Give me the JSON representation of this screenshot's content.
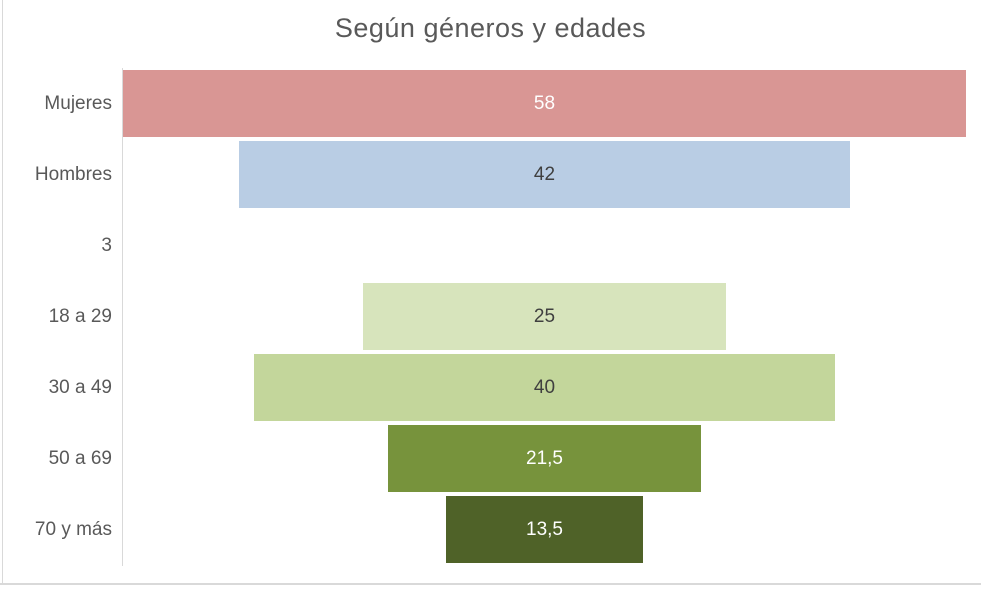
{
  "title": "Según géneros y edades",
  "colors": {
    "title_text": "#595959",
    "category_text": "#595959",
    "axis_line": "#d9d9d9",
    "chart_border": "#d9d9d9",
    "background": "#ffffff"
  },
  "chart_data": {
    "type": "bar",
    "subtype": "horizontal-centered-funnel",
    "title": "Según géneros y edades",
    "categories": [
      "Mujeres",
      "Hombres",
      "3",
      "18 a 29",
      "30 a 49",
      "50 a 69",
      "70 y más"
    ],
    "values": [
      58,
      42,
      null,
      25,
      40,
      21.5,
      13.5
    ],
    "value_labels": [
      "58",
      "42",
      "",
      "25",
      "40",
      "21,5",
      "13,5"
    ],
    "bar_colors": [
      "#d99694",
      "#b9cde4",
      "",
      "#d7e4bc",
      "#c3d69b",
      "#77933c",
      "#4f6228"
    ],
    "value_label_colors": [
      "#ffffff",
      "#3f3f3f",
      "",
      "#3f3f3f",
      "#3f3f3f",
      "#ffffff",
      "#ffffff"
    ],
    "xlim": [
      0,
      58
    ],
    "xlabel": "",
    "ylabel": "",
    "grid": false,
    "legend": "none"
  }
}
